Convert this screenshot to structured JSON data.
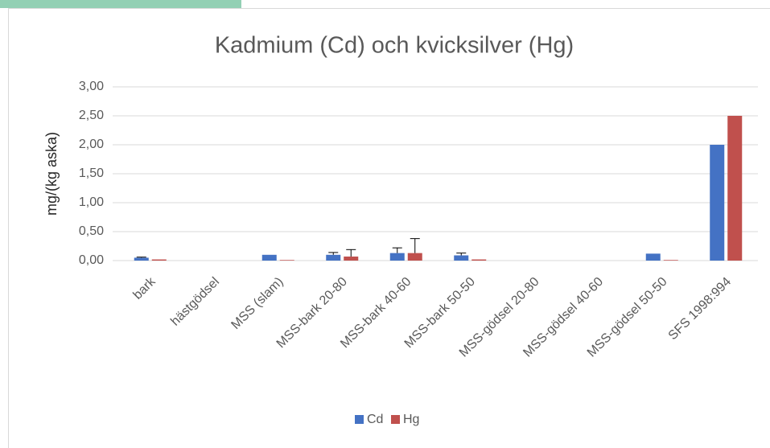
{
  "chart_data": {
    "type": "bar",
    "title": "Kadmium (Cd) och kvicksilver (Hg)",
    "y_label": "mg/(kg aska)",
    "categories": [
      "bark",
      "hästgödsel",
      "MSS (slam)",
      "MSS-bark 20-80",
      "MSS-bark 40-60",
      "MSS-bark 50-50",
      "MSS-gödsel 20-80",
      "MSS-gödsel 40-60",
      "MSS-gödsel 50-50",
      "SFS 1998:994"
    ],
    "series": [
      {
        "name": "Cd",
        "color": "#4472c4",
        "values": [
          0.05,
          null,
          0.1,
          0.1,
          0.13,
          0.09,
          null,
          null,
          0.12,
          2.0
        ],
        "errors": [
          0.01,
          null,
          null,
          0.04,
          0.09,
          0.04,
          null,
          null,
          null,
          null
        ]
      },
      {
        "name": "Hg",
        "color": "#c0504d",
        "values": [
          0.02,
          null,
          0.01,
          0.07,
          0.13,
          0.02,
          null,
          null,
          0.01,
          2.5
        ],
        "errors": [
          null,
          null,
          null,
          0.12,
          0.25,
          null,
          null,
          null,
          null,
          null
        ]
      }
    ],
    "ylim": [
      0,
      3
    ],
    "yticks": [
      {
        "value": 0,
        "label": "0,00"
      },
      {
        "value": 0.5,
        "label": "0,50"
      },
      {
        "value": 1,
        "label": "1,00"
      },
      {
        "value": 1.5,
        "label": "1,50"
      },
      {
        "value": 2,
        "label": "2,00"
      },
      {
        "value": 2.5,
        "label": "2,50"
      },
      {
        "value": 3,
        "label": "3,00"
      }
    ],
    "grid": true,
    "legend": "bottom"
  }
}
